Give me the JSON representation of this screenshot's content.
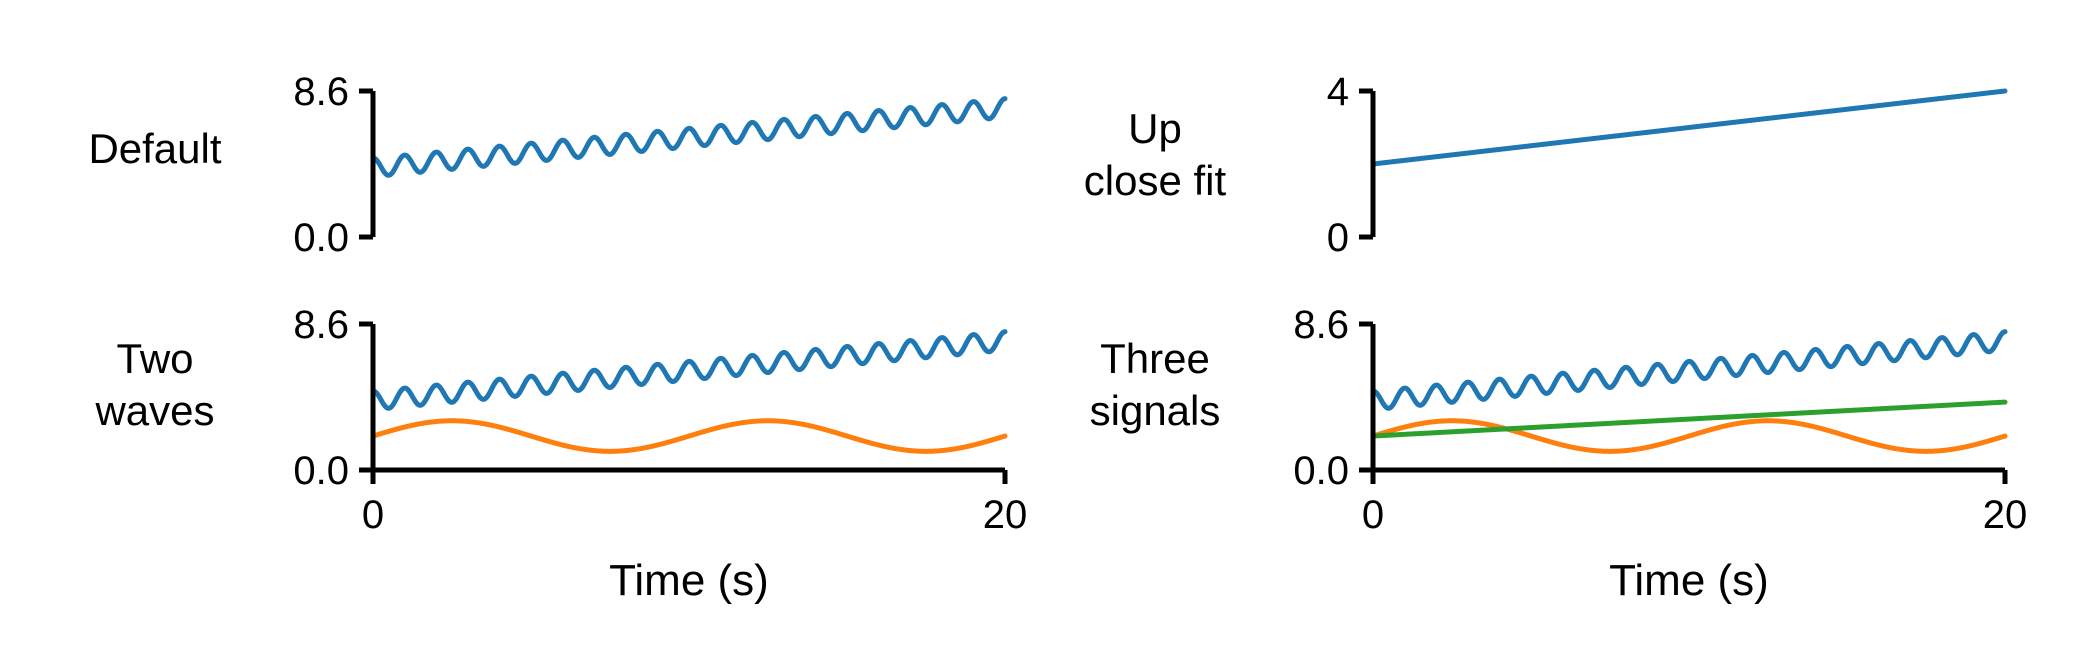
{
  "chart_data": [
    {
      "type": "line",
      "row_label": [
        "Default"
      ],
      "xlim": [
        0,
        20
      ],
      "ylim": [
        0,
        8.6
      ],
      "yticks": [
        "0.0",
        "8.6"
      ],
      "xticks": [],
      "xlabel": "",
      "series": [
        {
          "color": "#1f77b4",
          "kind": "wave",
          "base0": 4.1,
          "base1": 7.6,
          "amp": 0.55,
          "cycles": 20
        }
      ]
    },
    {
      "type": "line",
      "row_label": [
        "Up",
        "close fit"
      ],
      "xlim": [
        0,
        20
      ],
      "ylim": [
        0,
        4
      ],
      "yticks": [
        "0",
        "4"
      ],
      "xticks": [],
      "xlabel": "",
      "series": [
        {
          "color": "#1f77b4",
          "kind": "linear",
          "y0": 2.0,
          "y1": 4.0
        }
      ]
    },
    {
      "type": "line",
      "row_label": [
        "Two",
        "waves"
      ],
      "xlim": [
        0,
        20
      ],
      "ylim": [
        0,
        8.6
      ],
      "yticks": [
        "0.0",
        "8.6"
      ],
      "xticks": [
        "0",
        "20"
      ],
      "xlabel": "Time (s)",
      "series": [
        {
          "color": "#1f77b4",
          "kind": "wave",
          "base0": 4.1,
          "base1": 7.6,
          "amp": 0.55,
          "cycles": 20
        },
        {
          "color": "#ff7f0e",
          "kind": "sine",
          "mean": 2.0,
          "amp": 0.9,
          "period": 10
        }
      ]
    },
    {
      "type": "line",
      "row_label": [
        "Three",
        "signals"
      ],
      "xlim": [
        0,
        20
      ],
      "ylim": [
        0,
        8.6
      ],
      "yticks": [
        "0.0",
        "8.6"
      ],
      "xticks": [
        "0",
        "20"
      ],
      "xlabel": "Time (s)",
      "series": [
        {
          "color": "#1f77b4",
          "kind": "wave",
          "base0": 4.1,
          "base1": 7.6,
          "amp": 0.55,
          "cycles": 20
        },
        {
          "color": "#ff7f0e",
          "kind": "sine",
          "mean": 2.0,
          "amp": 0.9,
          "period": 10
        },
        {
          "color": "#2ca02c",
          "kind": "linear",
          "y0": 2.0,
          "y1": 4.0
        }
      ]
    }
  ]
}
